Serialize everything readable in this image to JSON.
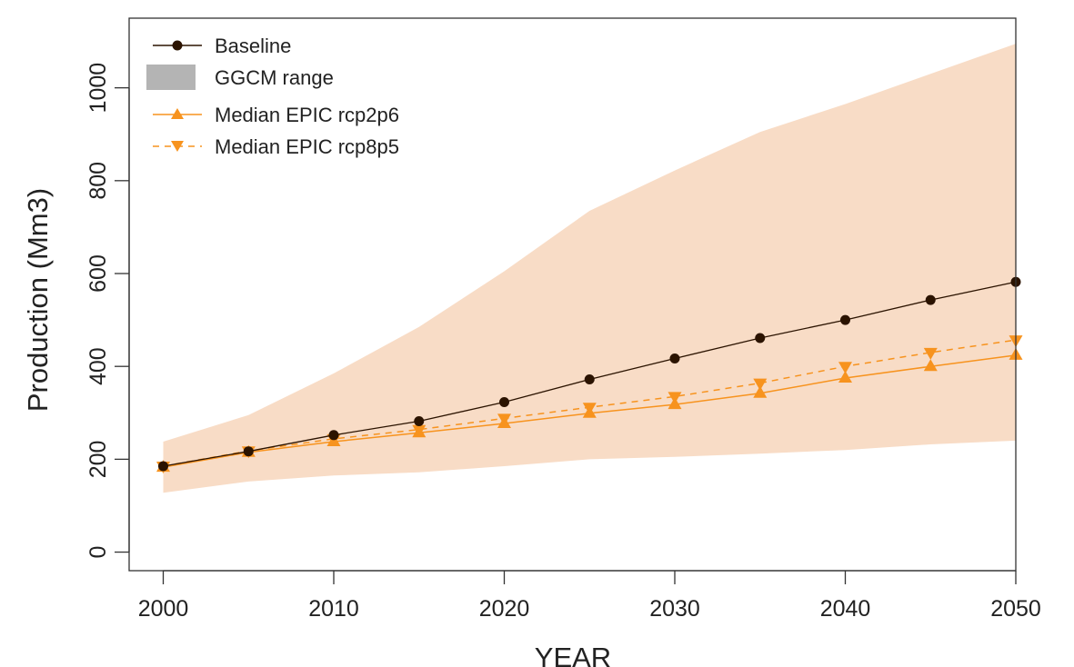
{
  "chart_data": {
    "type": "line",
    "title": "",
    "xlabel": "YEAR",
    "ylabel": "Production (Mm3)",
    "xlim": [
      1998,
      2050
    ],
    "ylim": [
      -40,
      1150
    ],
    "xticks": [
      2000,
      2010,
      2020,
      2030,
      2040,
      2050
    ],
    "yticks": [
      0,
      200,
      400,
      600,
      800,
      1000
    ],
    "grid": false,
    "legend_position": "top-left",
    "x": [
      2000,
      2005,
      2010,
      2015,
      2020,
      2025,
      2030,
      2035,
      2040,
      2045,
      2050
    ],
    "range": {
      "name": "GGCM range",
      "color": "#f8dcc6",
      "legend_color": "#b4b4b4",
      "lower": [
        128,
        152,
        165,
        172,
        185,
        200,
        205,
        212,
        220,
        232,
        240
      ],
      "upper": [
        238,
        295,
        385,
        485,
        605,
        735,
        822,
        905,
        965,
        1030,
        1095
      ]
    },
    "series": [
      {
        "name": "Baseline",
        "color": "#2b1300",
        "marker": "circle",
        "dash": "solid",
        "values": [
          185,
          217,
          252,
          282,
          323,
          372,
          417,
          461,
          500,
          543,
          582
        ]
      },
      {
        "name": "Median EPIC rcp2p6",
        "color": "#f7931e",
        "marker": "triangle-up",
        "dash": "solid",
        "values": [
          183,
          215,
          238,
          257,
          277,
          299,
          318,
          342,
          375,
          400,
          424
        ]
      },
      {
        "name": "Median EPIC rcp8p5",
        "color": "#f7931e",
        "marker": "triangle-down",
        "dash": "dashed",
        "values": [
          185,
          218,
          244,
          264,
          288,
          312,
          335,
          364,
          400,
          430,
          457
        ]
      }
    ]
  }
}
